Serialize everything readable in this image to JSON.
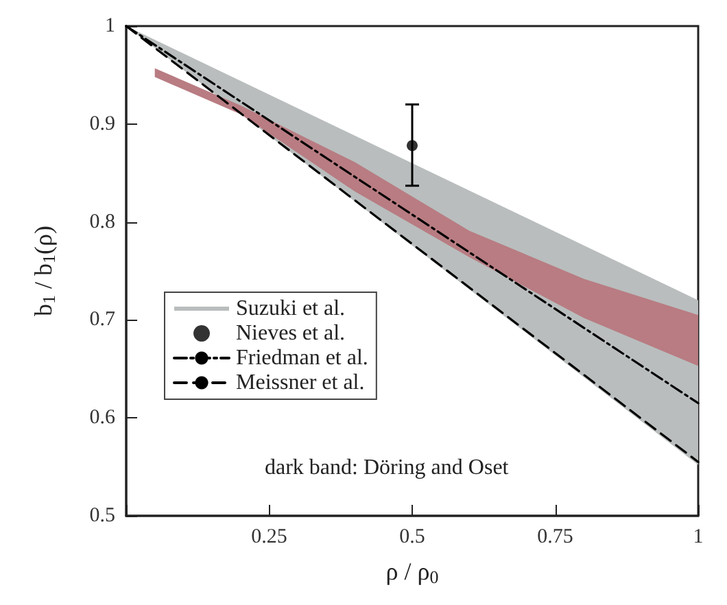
{
  "chart_data": {
    "type": "line",
    "xlabel": "ρ / ρ$_{0}$",
    "ylabel": "b$_{1}$ / b$_{1}$(ρ)",
    "xlim": [
      0,
      1
    ],
    "ylim": [
      0.5,
      1
    ],
    "xticks": [
      {
        "value": 0,
        "label": null
      },
      0.25,
      0.5,
      0.75,
      1
    ],
    "yticks": [
      0.5,
      0.6,
      0.7,
      0.8,
      0.9,
      1
    ],
    "grid": false,
    "legend": "left",
    "annotations": [
      "dark band: Döring and Oset"
    ],
    "series": [
      {
        "name": "Suzuki et al.",
        "type": "area",
        "color": "#b9bdbd",
        "x": [
          0,
          1
        ],
        "values": [
          null,
          null
        ],
        "lower": [
          1,
          0.552
        ],
        "upper": [
          1,
          0.72
        ]
      },
      {
        "type": "area",
        "color": "#b87c82",
        "x": [
          0.05,
          0.2,
          0.4,
          0.6,
          0.8,
          1
        ],
        "values": [
          null,
          null,
          null,
          null,
          null,
          null
        ],
        "lower": [
          0.948,
          0.91,
          0.831,
          0.764,
          0.702,
          0.653
        ],
        "upper": [
          0.957,
          0.919,
          0.861,
          0.791,
          0.742,
          0.705
        ]
      },
      {
        "name": "Nieves et al.",
        "type": "scatter",
        "marker": "circle",
        "color": "#000000",
        "x": [
          0.5
        ],
        "values": [
          0.878
        ],
        "errors": [
          [
            0.837,
            0.92
          ]
        ]
      },
      {
        "name": "Friedman et al.",
        "line_style": "dashdot",
        "color": "#000000",
        "x": [
          0,
          1
        ],
        "values": [
          1,
          0.615
        ]
      },
      {
        "name": "Meissner et al.",
        "line_style": "dashed",
        "color": "#000000",
        "x": [
          0,
          1
        ],
        "values": [
          1,
          0.555
        ]
      }
    ]
  }
}
